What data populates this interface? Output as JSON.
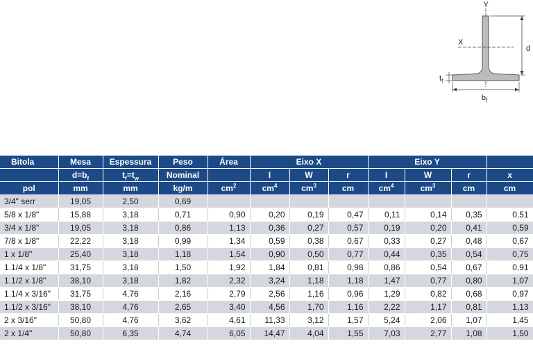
{
  "diagram": {
    "y_label": "Y",
    "x_label": "X",
    "d_label": "d",
    "tf_label": "t",
    "tf_sub": "f",
    "bf_label": "b",
    "bf_sub": "f"
  },
  "header": {
    "bitola": "Bitola",
    "mesa": "Mesa",
    "espessura": "Espessura",
    "peso": "Peso",
    "area": "Área",
    "eixo_x": "Eixo X",
    "eixo_y": "Eixo Y",
    "mesa_sub_a": "d=b",
    "mesa_sub_b": "f",
    "esp_a": "t",
    "esp_b": "f",
    "esp_c": "=t",
    "esp_d": "w",
    "peso_sub": "Nominal",
    "ix": "I",
    "wx": "W",
    "rx": "r",
    "iy": "I",
    "wy": "W",
    "ry": "r",
    "xc": "x"
  },
  "units": {
    "bitola": "pol",
    "mesa": "mm",
    "espessura": "mm",
    "peso": "kg/m",
    "area": "cm",
    "area_exp": "2",
    "ix": "cm",
    "ix_exp": "4",
    "wx": "cm",
    "wx_exp": "3",
    "rx": "cm",
    "iy": "cm",
    "iy_exp": "4",
    "wy": "cm",
    "wy_exp": "3",
    "ry": "cm",
    "xc": "cm"
  },
  "rows": [
    [
      "3/4\" serr",
      "19,05",
      "2,50",
      "0,69",
      "",
      "",
      "",
      "",
      "",
      "",
      "",
      ""
    ],
    [
      "5/8 x 1/8\"",
      "15,88",
      "3,18",
      "0,71",
      "0,90",
      "0,20",
      "0,19",
      "0,47",
      "0,11",
      "0,14",
      "0,35",
      "0,51"
    ],
    [
      "3/4 x 1/8\"",
      "19,05",
      "3,18",
      "0,86",
      "1,13",
      "0,36",
      "0,27",
      "0,57",
      "0,19",
      "0,20",
      "0,41",
      "0,59"
    ],
    [
      "7/8 x 1/8\"",
      "22,22",
      "3,18",
      "0,99",
      "1,34",
      "0,59",
      "0,38",
      "0,67",
      "0,33",
      "0,27",
      "0,48",
      "0,67"
    ],
    [
      "1 x 1/8\"",
      "25,40",
      "3,18",
      "1,18",
      "1,54",
      "0,90",
      "0,50",
      "0,77",
      "0,44",
      "0,35",
      "0,54",
      "0,75"
    ],
    [
      "1.1/4 x 1/8\"",
      "31,75",
      "3,18",
      "1,50",
      "1,92",
      "1,84",
      "0,81",
      "0,98",
      "0,86",
      "0,54",
      "0,67",
      "0,91"
    ],
    [
      "1.1/2 x 1/8\"",
      "38,10",
      "3,18",
      "1,82",
      "2,32",
      "3,24",
      "1,18",
      "1,18",
      "1,47",
      "0,77",
      "0,80",
      "1,07"
    ],
    [
      "1.1/4 x 3/16\"",
      "31,75",
      "4,76",
      "2,16",
      "2,79",
      "2,56",
      "1,16",
      "0,96",
      "1,29",
      "0,82",
      "0,68",
      "0,97"
    ],
    [
      "1.1/2 x 3/16\"",
      "38,10",
      "4,76",
      "2,65",
      "3,40",
      "4,56",
      "1,70",
      "1,16",
      "2,22",
      "1,17",
      "0,81",
      "1,13"
    ],
    [
      "2 x 3/16\"",
      "50,80",
      "4,76",
      "3,62",
      "4,61",
      "11,33",
      "3,12",
      "1,57",
      "5,24",
      "2,06",
      "1,07",
      "1,45"
    ],
    [
      "2 x 1/4\"",
      "50,80",
      "6,35",
      "4,74",
      "6,05",
      "14,47",
      "4,04",
      "1,55",
      "7,03",
      "2,77",
      "1,08",
      "1,50"
    ]
  ],
  "colors": {
    "header_bg": "#1c4a89",
    "stripe": "#d4d8de",
    "profile_fill": "#bcbcbc"
  }
}
